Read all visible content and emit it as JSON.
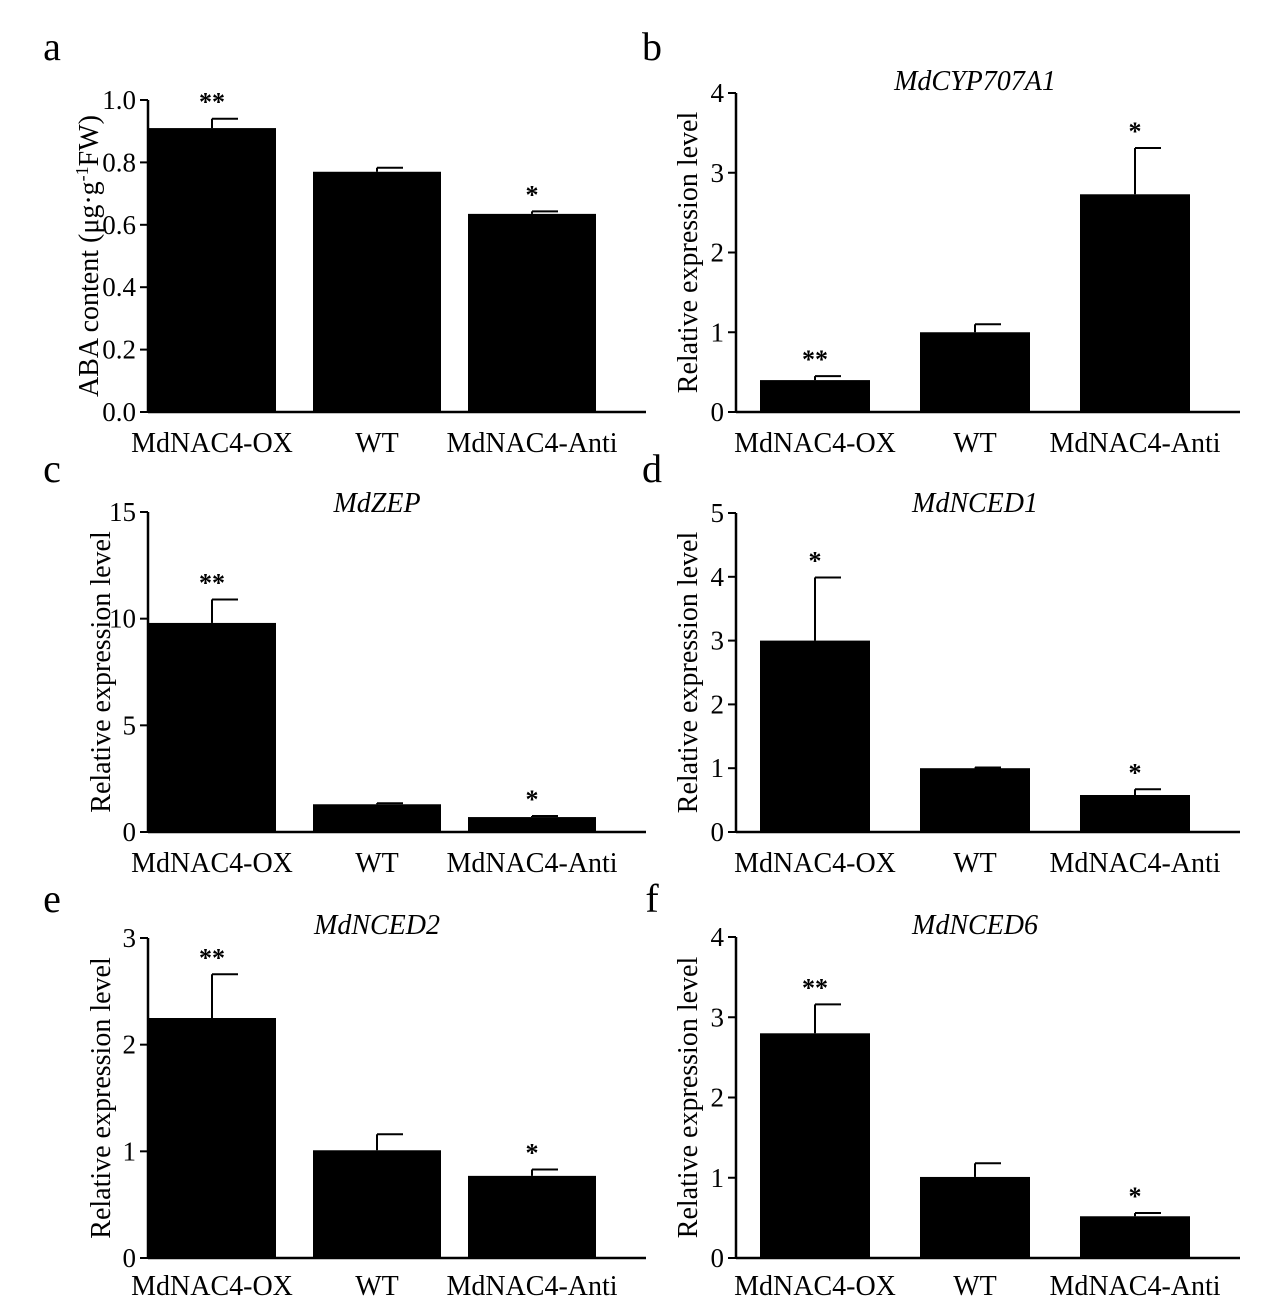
{
  "chart_data": [
    {
      "panel": "a",
      "type": "bar",
      "title": "",
      "ylabel_main": "ABA content (μg·g",
      "ylabel_sup": "-1",
      "ylabel_tail": "FW)",
      "categories": [
        "MdNAC4-OX",
        "WT",
        "MdNAC4-Anti"
      ],
      "values": [
        0.91,
        0.77,
        0.635
      ],
      "errors": [
        0.03,
        0.013,
        0.008
      ],
      "significance": [
        "**",
        "",
        "*"
      ],
      "ylim": [
        0,
        1.0
      ],
      "yticks": [
        "0.0",
        "0.2",
        "0.4",
        "0.6",
        "0.8",
        "1.0"
      ]
    },
    {
      "panel": "b",
      "type": "bar",
      "title": "MdCYP707A1",
      "ylabel": "Relative expression level",
      "categories": [
        "MdNAC4-OX",
        "WT",
        "MdNAC4-Anti"
      ],
      "values": [
        0.4,
        1.0,
        2.73
      ],
      "errors": [
        0.05,
        0.1,
        0.58
      ],
      "significance": [
        "**",
        "",
        "*"
      ],
      "ylim": [
        0,
        4
      ],
      "yticks": [
        "0",
        "1",
        "2",
        "3",
        "4"
      ]
    },
    {
      "panel": "c",
      "type": "bar",
      "title": "MdZEP",
      "ylabel": "Relative expression level",
      "categories": [
        "MdNAC4-OX",
        "WT",
        "MdNAC4-Anti"
      ],
      "values": [
        9.8,
        1.3,
        0.7
      ],
      "errors": [
        1.1,
        0.05,
        0.05
      ],
      "significance": [
        "**",
        "",
        "*"
      ],
      "ylim": [
        0,
        15
      ],
      "yticks": [
        "0",
        "5",
        "10",
        "15"
      ]
    },
    {
      "panel": "d",
      "type": "bar",
      "title": "MdNCED1",
      "ylabel": "Relative expression level",
      "categories": [
        "MdNAC4-OX",
        "WT",
        "MdNAC4-Anti"
      ],
      "values": [
        3.0,
        1.0,
        0.58
      ],
      "errors": [
        0.99,
        0.01,
        0.09
      ],
      "significance": [
        "*",
        "",
        "*"
      ],
      "ylim": [
        0,
        5
      ],
      "yticks": [
        "0",
        "1",
        "2",
        "3",
        "4",
        "5"
      ]
    },
    {
      "panel": "e",
      "type": "bar",
      "title": "MdNCED2",
      "ylabel": "Relative expression level",
      "categories": [
        "MdNAC4-OX",
        "WT",
        "MdNAC4-Anti"
      ],
      "values": [
        2.25,
        1.01,
        0.77
      ],
      "errors": [
        0.41,
        0.15,
        0.06
      ],
      "significance": [
        "**",
        "",
        "*"
      ],
      "ylim": [
        0,
        3
      ],
      "yticks": [
        "0",
        "1",
        "2",
        "3"
      ]
    },
    {
      "panel": "f",
      "type": "bar",
      "title": "MdNCED6",
      "ylabel": "Relative expression level",
      "categories": [
        "MdNAC4-OX",
        "WT",
        "MdNAC4-Anti"
      ],
      "values": [
        2.8,
        1.01,
        0.52
      ],
      "errors": [
        0.36,
        0.17,
        0.04
      ],
      "significance": [
        "**",
        "",
        "*"
      ],
      "ylim": [
        0,
        4
      ],
      "yticks": [
        "0",
        "1",
        "2",
        "3",
        "4"
      ]
    }
  ],
  "colors": {
    "bar": "#000000",
    "axis": "#000000"
  }
}
